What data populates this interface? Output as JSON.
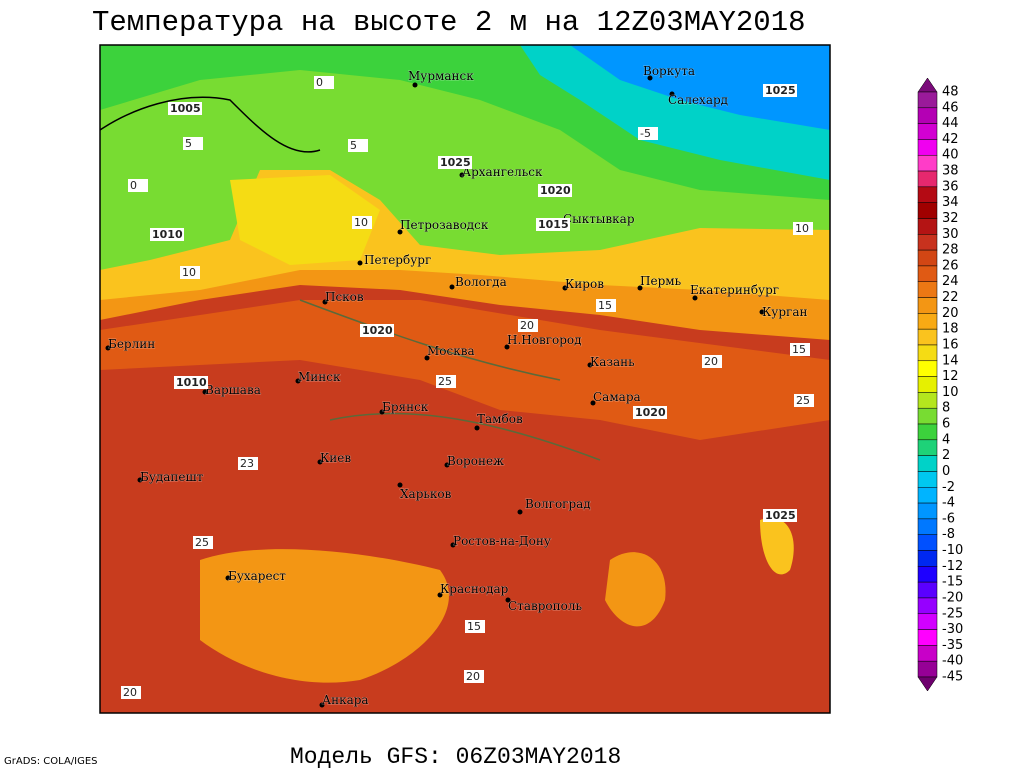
{
  "title": "Температура на высоте 2 м на 12Z03MAY2018",
  "subtitle": "Модель GFS: 06Z03MAY2018",
  "credit": "GrADS: COLA/IGES",
  "cities": [
    "Мурманск",
    "Воркута",
    "Салехард",
    "Архангельск",
    "Петрозаводск",
    "Сыктывкар",
    "Петербург",
    "Вологда",
    "Киров",
    "Пермь",
    "Екатеринбург",
    "Псков",
    "Курган",
    "Берлин",
    "Н.Новгород",
    "Москва",
    "Казань",
    "Минск",
    "Варшава",
    "Самара",
    "Брянск",
    "Тамбов",
    "Киев",
    "Воронеж",
    "Будапешт",
    "Харьков",
    "Волгоград",
    "Ростов-на-Дону",
    "Бухарест",
    "Краснодар",
    "Ставрополь",
    "Анкара"
  ],
  "isobar_labels": [
    1005,
    1010,
    1025,
    1020,
    1015,
    1025,
    1020,
    1010,
    1020,
    1025
  ],
  "isotherm_labels": [
    0,
    -5,
    5,
    10,
    15,
    20,
    25,
    25,
    23,
    20,
    25,
    15,
    20,
    0,
    5,
    10,
    10,
    20,
    15
  ],
  "colorbar": {
    "labels": [
      48,
      46,
      44,
      42,
      40,
      38,
      36,
      34,
      32,
      30,
      28,
      26,
      24,
      22,
      20,
      18,
      16,
      14,
      12,
      10,
      8,
      6,
      4,
      2,
      0,
      -2,
      -4,
      -6,
      -8,
      -10,
      -12,
      -15,
      -20,
      -25,
      -30,
      -35,
      -40,
      -45
    ],
    "colors": [
      "#7a0a7a",
      "#9a1a9a",
      "#b400b4",
      "#d200d2",
      "#f000f0",
      "#ff3cc8",
      "#e6286e",
      "#b40a14",
      "#a00000",
      "#b41414",
      "#c8321e",
      "#d24614",
      "#e05a14",
      "#ec7814",
      "#f39614",
      "#f8aa14",
      "#fac31e",
      "#f5dc14",
      "#ffff00",
      "#e6f000",
      "#b4e61e",
      "#78dc32",
      "#3cd23c",
      "#1ed278",
      "#00d2c8",
      "#00c8f0",
      "#00b4ff",
      "#0096ff",
      "#0078ff",
      "#0050ff",
      "#0028f0",
      "#1e00ff",
      "#5a00ff",
      "#9600ff",
      "#d200ff",
      "#ff00ff",
      "#c800c8",
      "#960096",
      "#6e006e"
    ]
  }
}
